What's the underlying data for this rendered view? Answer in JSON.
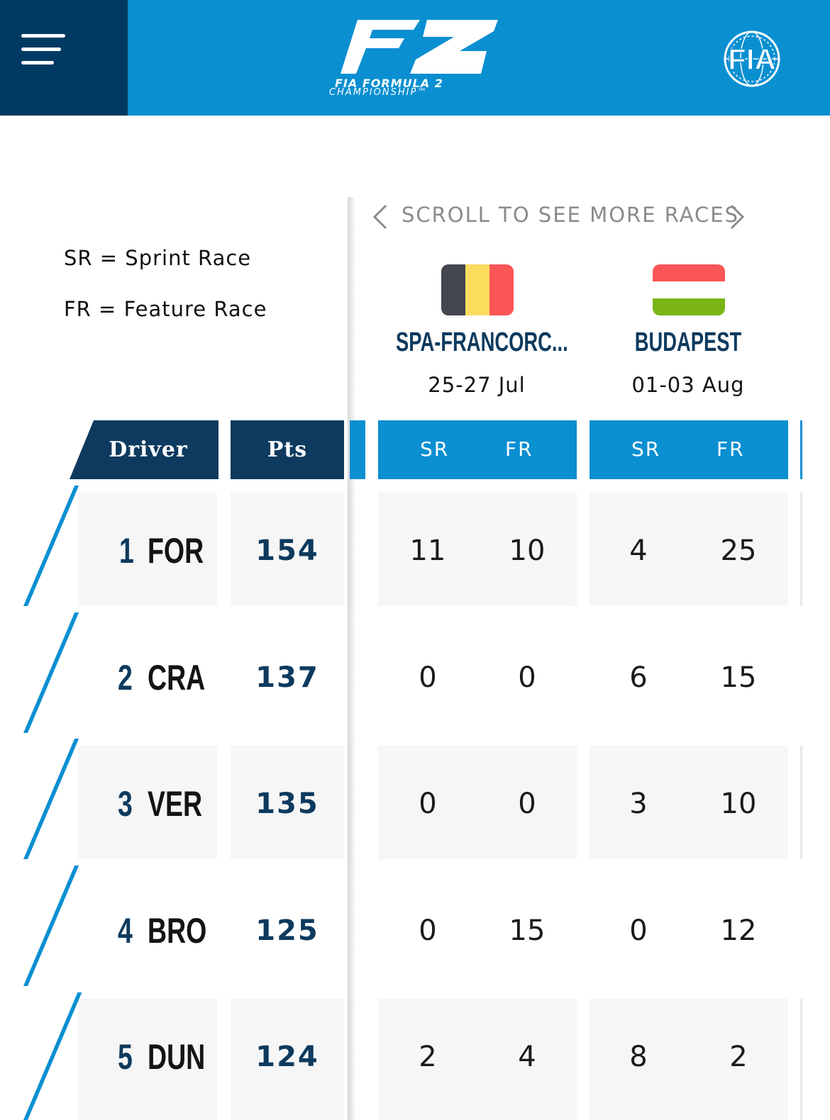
{
  "header": {
    "logo_mark": "F2",
    "logo_line1": "FIA FORMULA 2",
    "logo_line2": "CHAMPIONSHIP™",
    "fia_logo": "FIA",
    "icons": {
      "menu": "hamburger-menu-icon",
      "fia": "fia-globe-logo"
    }
  },
  "legend": {
    "sprint": "SR = Sprint Race",
    "feature": "FR = Feature Race"
  },
  "scroll_hint": "SCROLL TO SEE MORE RACES",
  "races": [
    {
      "name": "SPA-FRANCORC...",
      "dates": "25-27 Jul",
      "flag": "belgium",
      "flag_colors": [
        "#43454f",
        "#fbdd5e",
        "#fa5557"
      ]
    },
    {
      "name": "BUDAPEST",
      "dates": "01-03 Aug",
      "flag": "hungary",
      "flag_colors": [
        "#fa5557",
        "#ffffff",
        "#7ab515"
      ]
    }
  ],
  "columns": {
    "driver": "Driver",
    "pts": "Pts",
    "sr": "SR",
    "fr": "FR"
  },
  "standings": [
    {
      "pos": "1",
      "code": "FOR",
      "pts": "154",
      "spa_sr": "11",
      "spa_fr": "10",
      "bud_sr": "4",
      "bud_fr": "25"
    },
    {
      "pos": "2",
      "code": "CRA",
      "pts": "137",
      "spa_sr": "0",
      "spa_fr": "0",
      "bud_sr": "6",
      "bud_fr": "15"
    },
    {
      "pos": "3",
      "code": "VER",
      "pts": "135",
      "spa_sr": "0",
      "spa_fr": "0",
      "bud_sr": "3",
      "bud_fr": "10"
    },
    {
      "pos": "4",
      "code": "BRO",
      "pts": "125",
      "spa_sr": "0",
      "spa_fr": "15",
      "bud_sr": "0",
      "bud_fr": "12"
    },
    {
      "pos": "5",
      "code": "DUN",
      "pts": "124",
      "spa_sr": "2",
      "spa_fr": "4",
      "bud_sr": "8",
      "bud_fr": "2"
    }
  ],
  "colors": {
    "dark_navy": "#0d3a5e",
    "header_navy": "#003a63",
    "brand_blue": "#0a8fd1",
    "row_grey": "#f6f6f6"
  }
}
